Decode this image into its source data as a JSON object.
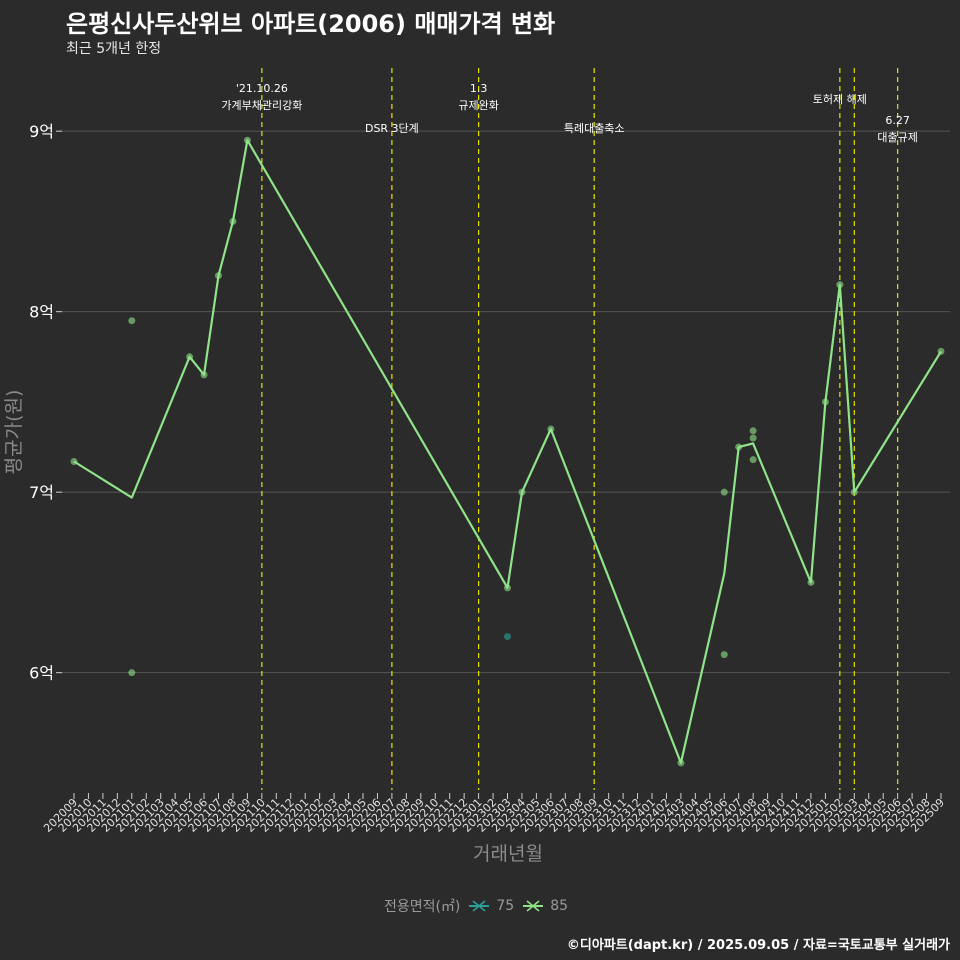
{
  "title": "은평신사두산위브 아파트(2006) 매매가격 변화",
  "subtitle": "최근 5개년 한정",
  "caption": "©디아파트(dapt.kr) / 2025.09.05 / 자료=국토교통부 실거래가",
  "chart_data": {
    "type": "line",
    "xlabel": "거래년월",
    "ylabel": "평균가(원)",
    "ylim": [
      5.35,
      9.35
    ],
    "yticks": [
      {
        "value": 6,
        "label": "6억"
      },
      {
        "value": 7,
        "label": "7억"
      },
      {
        "value": 8,
        "label": "8억"
      },
      {
        "value": 9,
        "label": "9억"
      }
    ],
    "categories": [
      "202009",
      "202010",
      "202011",
      "202012",
      "202101",
      "202102",
      "202103",
      "202104",
      "202105",
      "202106",
      "202107",
      "202108",
      "202109",
      "202110",
      "202111",
      "202112",
      "202201",
      "202202",
      "202203",
      "202204",
      "202205",
      "202206",
      "202207",
      "202208",
      "202209",
      "202210",
      "202211",
      "202212",
      "202301",
      "202302",
      "202303",
      "202304",
      "202305",
      "202306",
      "202307",
      "202308",
      "202309",
      "202310",
      "202311",
      "202312",
      "202401",
      "202402",
      "202403",
      "202404",
      "202405",
      "202406",
      "202407",
      "202408",
      "202409",
      "202410",
      "202411",
      "202412",
      "202501",
      "202502",
      "202503",
      "202504",
      "202505",
      "202506",
      "202507",
      "202508",
      "202509"
    ],
    "legend": {
      "title": "전용면적(㎡)",
      "position": "bottom",
      "items": [
        {
          "label": "75",
          "color": "#2aa198"
        },
        {
          "label": "85",
          "color": "#8fe388"
        }
      ]
    },
    "series": [
      {
        "name": "85",
        "color": "#8fe388",
        "line": [
          {
            "x": "202009",
            "y": 7.17
          },
          {
            "x": "202101",
            "y": 6.97
          },
          {
            "x": "202105",
            "y": 7.75
          },
          {
            "x": "202106",
            "y": 7.65
          },
          {
            "x": "202107",
            "y": 8.2
          },
          {
            "x": "202108",
            "y": 8.5
          },
          {
            "x": "202109",
            "y": 8.95
          },
          {
            "x": "202303",
            "y": 6.47
          },
          {
            "x": "202304",
            "y": 7.0
          },
          {
            "x": "202306",
            "y": 7.35
          },
          {
            "x": "202403",
            "y": 5.5
          },
          {
            "x": "202406",
            "y": 6.55
          },
          {
            "x": "202407",
            "y": 7.25
          },
          {
            "x": "202408",
            "y": 7.27
          },
          {
            "x": "202412",
            "y": 6.5
          },
          {
            "x": "202501",
            "y": 7.5
          },
          {
            "x": "202502",
            "y": 8.15
          },
          {
            "x": "202503",
            "y": 7.0
          },
          {
            "x": "202509",
            "y": 7.78
          }
        ],
        "points": [
          {
            "x": "202009",
            "y": 7.17
          },
          {
            "x": "202101",
            "y": 7.95
          },
          {
            "x": "202101",
            "y": 6.0
          },
          {
            "x": "202105",
            "y": 7.75
          },
          {
            "x": "202106",
            "y": 7.65
          },
          {
            "x": "202107",
            "y": 8.2
          },
          {
            "x": "202108",
            "y": 8.5
          },
          {
            "x": "202109",
            "y": 8.95
          },
          {
            "x": "202303",
            "y": 6.47
          },
          {
            "x": "202304",
            "y": 7.0
          },
          {
            "x": "202306",
            "y": 7.35
          },
          {
            "x": "202403",
            "y": 5.5
          },
          {
            "x": "202406",
            "y": 7.0
          },
          {
            "x": "202406",
            "y": 6.1
          },
          {
            "x": "202407",
            "y": 7.25
          },
          {
            "x": "202408",
            "y": 7.34
          },
          {
            "x": "202408",
            "y": 7.3
          },
          {
            "x": "202408",
            "y": 7.18
          },
          {
            "x": "202412",
            "y": 6.5
          },
          {
            "x": "202501",
            "y": 7.5
          },
          {
            "x": "202502",
            "y": 8.15
          },
          {
            "x": "202503",
            "y": 7.0
          },
          {
            "x": "202509",
            "y": 7.78
          }
        ]
      },
      {
        "name": "75",
        "color": "#2aa198",
        "line": [],
        "points": [
          {
            "x": "202303",
            "y": 6.2
          }
        ]
      }
    ],
    "events": [
      {
        "x": "202110",
        "label": "'21.10.26\n가계부채관리강화",
        "level": 0
      },
      {
        "x": "202207",
        "label": "DSR 3단계",
        "level": 2
      },
      {
        "x": "202301",
        "label": "1.3\n규제완화",
        "level": 0
      },
      {
        "x": "202309",
        "label": "특례대출축소",
        "level": 2
      },
      {
        "x": "202502",
        "label": "토허제 해제",
        "level": 1
      },
      {
        "x": "202503",
        "label": "",
        "level": 1
      },
      {
        "x": "202506",
        "label": "6.27\n대출규제",
        "level": 3
      }
    ]
  }
}
